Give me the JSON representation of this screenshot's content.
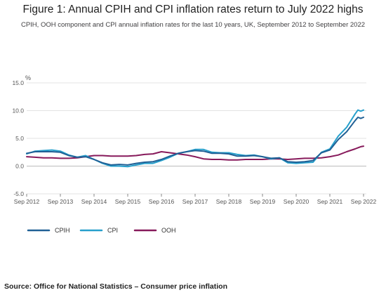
{
  "chart_data": {
    "type": "line",
    "title": "Figure 1: Annual CPIH and CPI inflation rates return to July 2022 highs",
    "subtitle": "CPIH, OOH component and CPI annual inflation rates for the last 10 years, UK, September 2012 to September 2022",
    "ylabel": "%",
    "xlabel": "",
    "ylim": [
      -5,
      15
    ],
    "yticks": [
      "-5.0",
      "0.0",
      "5.0",
      "10.0",
      "15.0"
    ],
    "xticks": [
      "Sep 2012",
      "Sep 2013",
      "Sep 2014",
      "Sep 2015",
      "Sep 2016",
      "Sep 2017",
      "Sep 2018",
      "Sep 2019",
      "Sep 2020",
      "Sep 2021",
      "Sep 2022"
    ],
    "grid": "horizontal",
    "legend_position": "bottom-left",
    "x_start": "Sep 2012",
    "x_end": "Sep 2022",
    "series": [
      {
        "name": "CPIH",
        "color": "#206095",
        "points": [
          [
            "Sep 2012",
            2.3
          ],
          [
            "Dec 2012",
            2.6
          ],
          [
            "Mar 2013",
            2.6
          ],
          [
            "Jun 2013",
            2.6
          ],
          [
            "Sep 2013",
            2.5
          ],
          [
            "Dec 2013",
            1.9
          ],
          [
            "Mar 2014",
            1.6
          ],
          [
            "Jun 2014",
            1.7
          ],
          [
            "Sep 2014",
            1.2
          ],
          [
            "Dec 2014",
            0.6
          ],
          [
            "Mar 2015",
            0.2
          ],
          [
            "Jun 2015",
            0.3
          ],
          [
            "Sep 2015",
            0.2
          ],
          [
            "Dec 2015",
            0.5
          ],
          [
            "Mar 2016",
            0.7
          ],
          [
            "Jun 2016",
            0.8
          ],
          [
            "Sep 2016",
            1.2
          ],
          [
            "Dec 2016",
            1.8
          ],
          [
            "Mar 2017",
            2.3
          ],
          [
            "Jun 2017",
            2.6
          ],
          [
            "Sep 2017",
            2.8
          ],
          [
            "Dec 2017",
            2.7
          ],
          [
            "Mar 2018",
            2.3
          ],
          [
            "Jun 2018",
            2.3
          ],
          [
            "Sep 2018",
            2.2
          ],
          [
            "Dec 2018",
            1.8
          ],
          [
            "Mar 2019",
            1.8
          ],
          [
            "Jun 2019",
            1.9
          ],
          [
            "Sep 2019",
            1.7
          ],
          [
            "Dec 2019",
            1.4
          ],
          [
            "Mar 2020",
            1.5
          ],
          [
            "Jun 2020",
            0.8
          ],
          [
            "Sep 2020",
            0.7
          ],
          [
            "Dec 2020",
            0.8
          ],
          [
            "Mar 2021",
            1.0
          ],
          [
            "Jun 2021",
            2.4
          ],
          [
            "Sep 2021",
            2.9
          ],
          [
            "Dec 2021",
            4.8
          ],
          [
            "Mar 2022",
            6.2
          ],
          [
            "Jun 2022",
            8.2
          ],
          [
            "Jul 2022",
            8.8
          ],
          [
            "Aug 2022",
            8.6
          ],
          [
            "Sep 2022",
            8.8
          ]
        ]
      },
      {
        "name": "CPI",
        "color": "#27a0cc",
        "points": [
          [
            "Sep 2012",
            2.2
          ],
          [
            "Dec 2012",
            2.7
          ],
          [
            "Mar 2013",
            2.8
          ],
          [
            "Jun 2013",
            2.9
          ],
          [
            "Sep 2013",
            2.7
          ],
          [
            "Dec 2013",
            2.0
          ],
          [
            "Mar 2014",
            1.6
          ],
          [
            "Jun 2014",
            1.9
          ],
          [
            "Sep 2014",
            1.2
          ],
          [
            "Dec 2014",
            0.5
          ],
          [
            "Mar 2015",
            0.0
          ],
          [
            "Jun 2015",
            0.0
          ],
          [
            "Sep 2015",
            -0.1
          ],
          [
            "Dec 2015",
            0.2
          ],
          [
            "Mar 2016",
            0.5
          ],
          [
            "Jun 2016",
            0.5
          ],
          [
            "Sep 2016",
            1.0
          ],
          [
            "Dec 2016",
            1.6
          ],
          [
            "Mar 2017",
            2.3
          ],
          [
            "Jun 2017",
            2.6
          ],
          [
            "Sep 2017",
            3.0
          ],
          [
            "Dec 2017",
            3.0
          ],
          [
            "Mar 2018",
            2.5
          ],
          [
            "Jun 2018",
            2.4
          ],
          [
            "Sep 2018",
            2.4
          ],
          [
            "Dec 2018",
            2.1
          ],
          [
            "Mar 2019",
            1.9
          ],
          [
            "Jun 2019",
            2.0
          ],
          [
            "Sep 2019",
            1.7
          ],
          [
            "Dec 2019",
            1.3
          ],
          [
            "Mar 2020",
            1.5
          ],
          [
            "Jun 2020",
            0.6
          ],
          [
            "Sep 2020",
            0.5
          ],
          [
            "Dec 2020",
            0.6
          ],
          [
            "Mar 2021",
            0.7
          ],
          [
            "Jun 2021",
            2.5
          ],
          [
            "Sep 2021",
            3.1
          ],
          [
            "Dec 2021",
            5.4
          ],
          [
            "Mar 2022",
            7.0
          ],
          [
            "Jun 2022",
            9.4
          ],
          [
            "Jul 2022",
            10.1
          ],
          [
            "Aug 2022",
            9.9
          ],
          [
            "Sep 2022",
            10.1
          ]
        ]
      },
      {
        "name": "OOH",
        "color": "#871a5b",
        "points": [
          [
            "Sep 2012",
            1.7
          ],
          [
            "Dec 2012",
            1.6
          ],
          [
            "Mar 2013",
            1.5
          ],
          [
            "Jun 2013",
            1.5
          ],
          [
            "Sep 2013",
            1.4
          ],
          [
            "Dec 2013",
            1.4
          ],
          [
            "Mar 2014",
            1.5
          ],
          [
            "Jun 2014",
            1.7
          ],
          [
            "Sep 2014",
            1.9
          ],
          [
            "Dec 2014",
            1.9
          ],
          [
            "Mar 2015",
            1.8
          ],
          [
            "Jun 2015",
            1.8
          ],
          [
            "Sep 2015",
            1.8
          ],
          [
            "Dec 2015",
            1.9
          ],
          [
            "Mar 2016",
            2.1
          ],
          [
            "Jun 2016",
            2.2
          ],
          [
            "Sep 2016",
            2.6
          ],
          [
            "Dec 2016",
            2.4
          ],
          [
            "Mar 2017",
            2.2
          ],
          [
            "Jun 2017",
            2.0
          ],
          [
            "Sep 2017",
            1.7
          ],
          [
            "Dec 2017",
            1.3
          ],
          [
            "Mar 2018",
            1.2
          ],
          [
            "Jun 2018",
            1.2
          ],
          [
            "Sep 2018",
            1.1
          ],
          [
            "Dec 2018",
            1.1
          ],
          [
            "Mar 2019",
            1.2
          ],
          [
            "Jun 2019",
            1.2
          ],
          [
            "Sep 2019",
            1.2
          ],
          [
            "Dec 2019",
            1.3
          ],
          [
            "Mar 2020",
            1.3
          ],
          [
            "Jun 2020",
            1.2
          ],
          [
            "Sep 2020",
            1.3
          ],
          [
            "Dec 2020",
            1.4
          ],
          [
            "Mar 2021",
            1.4
          ],
          [
            "Jun 2021",
            1.5
          ],
          [
            "Sep 2021",
            1.7
          ],
          [
            "Dec 2021",
            2.0
          ],
          [
            "Mar 2022",
            2.6
          ],
          [
            "Jun 2022",
            3.1
          ],
          [
            "Jul 2022",
            3.3
          ],
          [
            "Aug 2022",
            3.5
          ],
          [
            "Sep 2022",
            3.6
          ]
        ]
      }
    ]
  },
  "source": "Source: Office for National Statistics – Consumer price inflation"
}
